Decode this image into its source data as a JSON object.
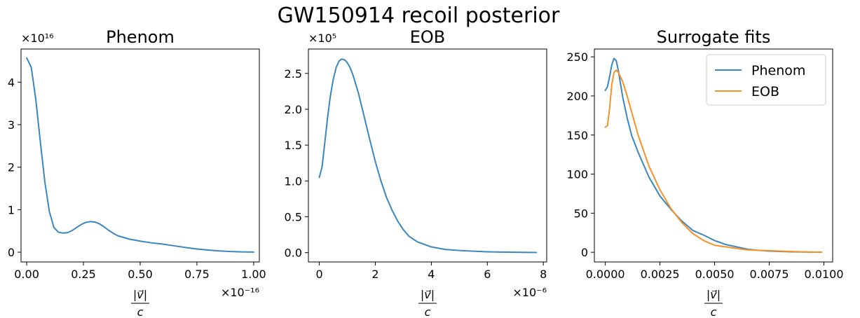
{
  "figure": {
    "title": "GW150914 recoil posterior"
  },
  "chart_data": [
    {
      "type": "line",
      "title": "Phenom",
      "xlabel_num": "|v⃗|",
      "xlabel_den": "c",
      "x_multiplier": "×10⁻¹⁶",
      "y_multiplier": "×10¹⁶",
      "xlim": [
        -0.025,
        1.025
      ],
      "ylim": [
        -0.23,
        4.78
      ],
      "xticks": [
        0.0,
        0.25,
        0.5,
        0.75,
        1.0
      ],
      "xtick_labels": [
        "0.00",
        "0.25",
        "0.50",
        "0.75",
        "1.00"
      ],
      "yticks": [
        0,
        1,
        2,
        3,
        4
      ],
      "ytick_labels": [
        "0",
        "1",
        "2",
        "3",
        "4"
      ],
      "grid": false,
      "series": [
        {
          "color": "#3a87c0",
          "x": [
            0.0,
            0.02,
            0.04,
            0.06,
            0.08,
            0.1,
            0.12,
            0.14,
            0.16,
            0.18,
            0.2,
            0.22,
            0.24,
            0.26,
            0.28,
            0.3,
            0.32,
            0.34,
            0.36,
            0.38,
            0.4,
            0.45,
            0.5,
            0.55,
            0.6,
            0.65,
            0.7,
            0.75,
            0.8,
            0.85,
            0.9,
            0.95,
            1.0
          ],
          "y": [
            4.57,
            4.35,
            3.6,
            2.6,
            1.65,
            0.95,
            0.58,
            0.47,
            0.45,
            0.46,
            0.51,
            0.58,
            0.65,
            0.7,
            0.72,
            0.71,
            0.67,
            0.6,
            0.52,
            0.45,
            0.39,
            0.31,
            0.26,
            0.22,
            0.19,
            0.15,
            0.11,
            0.075,
            0.05,
            0.03,
            0.015,
            0.006,
            0.003
          ]
        }
      ]
    },
    {
      "type": "line",
      "title": "EOB",
      "xlabel_num": "|v⃗|",
      "xlabel_den": "c",
      "x_multiplier": "×10⁻⁶",
      "y_multiplier": "×10⁵",
      "xlim": [
        -0.39,
        8.12
      ],
      "ylim": [
        -0.13,
        2.84
      ],
      "xticks": [
        0,
        2,
        4,
        6,
        8
      ],
      "xtick_labels": [
        "0",
        "2",
        "4",
        "6",
        "8"
      ],
      "yticks": [
        0.0,
        0.5,
        1.0,
        1.5,
        2.0,
        2.5
      ],
      "ytick_labels": [
        "0.0",
        "0.5",
        "1.0",
        "1.5",
        "2.0",
        "2.5"
      ],
      "grid": false,
      "series": [
        {
          "color": "#3a87c0",
          "x": [
            0.0,
            0.1,
            0.2,
            0.3,
            0.4,
            0.5,
            0.6,
            0.7,
            0.8,
            0.9,
            1.0,
            1.1,
            1.2,
            1.4,
            1.6,
            1.8,
            2.0,
            2.2,
            2.4,
            2.6,
            2.8,
            3.0,
            3.2,
            3.5,
            4.0,
            4.5,
            5.0,
            5.5,
            6.0,
            6.5,
            7.0,
            7.5,
            7.75
          ],
          "y": [
            1.05,
            1.2,
            1.55,
            1.9,
            2.2,
            2.42,
            2.58,
            2.67,
            2.7,
            2.69,
            2.65,
            2.58,
            2.48,
            2.22,
            1.9,
            1.58,
            1.27,
            1.0,
            0.77,
            0.59,
            0.44,
            0.32,
            0.23,
            0.15,
            0.08,
            0.045,
            0.03,
            0.02,
            0.012,
            0.008,
            0.005,
            0.003,
            0.002
          ]
        }
      ]
    },
    {
      "type": "line",
      "title": "Surrogate fits",
      "xlabel_num": "|v⃗|",
      "xlabel_den": "c",
      "xlim": [
        -0.0005,
        0.0104
      ],
      "ylim": [
        -12.4,
        260
      ],
      "xticks": [
        0.0,
        0.0025,
        0.005,
        0.0075,
        0.01
      ],
      "xtick_labels": [
        "0.0000",
        "0.0025",
        "0.0050",
        "0.0075",
        "0.0100"
      ],
      "yticks": [
        0,
        50,
        100,
        150,
        200,
        250
      ],
      "ytick_labels": [
        "0",
        "50",
        "100",
        "150",
        "200",
        "250"
      ],
      "grid": false,
      "legend_position": "top-right",
      "series": [
        {
          "name": "Phenom",
          "color": "#3a87c0",
          "x": [
            0.0,
            0.0001,
            0.0002,
            0.0003,
            0.0004,
            0.0005,
            0.0006,
            0.0007,
            0.0008,
            0.001,
            0.0012,
            0.0015,
            0.002,
            0.0025,
            0.003,
            0.0035,
            0.004,
            0.0045,
            0.005,
            0.0055,
            0.006,
            0.0065,
            0.007,
            0.0075,
            0.008,
            0.0085,
            0.009,
            0.0095,
            0.0099
          ],
          "y": [
            207,
            212,
            225,
            240,
            248,
            245,
            232,
            215,
            198,
            172,
            150,
            128,
            96,
            72,
            55,
            40,
            28,
            22,
            15,
            10,
            7,
            4,
            2.5,
            1.5,
            1,
            0.6,
            0.4,
            0.2,
            0.1
          ]
        },
        {
          "name": "EOB",
          "color": "#f5922a",
          "x": [
            0.0,
            0.0001,
            0.0002,
            0.0003,
            0.0004,
            0.0005,
            0.0006,
            0.0007,
            0.0008,
            0.001,
            0.0012,
            0.0015,
            0.002,
            0.0025,
            0.003,
            0.0035,
            0.004,
            0.0045,
            0.005,
            0.0055,
            0.006,
            0.0065,
            0.007,
            0.0075,
            0.008,
            0.0085,
            0.009,
            0.0095,
            0.0099
          ],
          "y": [
            160,
            162,
            185,
            215,
            230,
            233,
            230,
            224,
            218,
            200,
            180,
            150,
            110,
            80,
            56,
            38,
            24,
            15,
            9,
            7,
            5,
            3,
            2.5,
            2,
            1.5,
            1,
            0.6,
            0.3,
            0.2
          ]
        }
      ]
    }
  ]
}
